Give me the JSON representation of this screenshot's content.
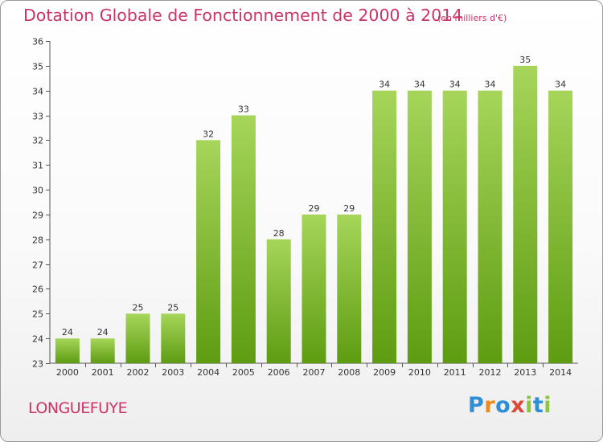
{
  "chart_data": {
    "type": "bar",
    "title": "Dotation Globale de Fonctionnement de 2000 à 2014",
    "unit_note": "(en milliers d'€)",
    "categories": [
      "2000",
      "2001",
      "2002",
      "2003",
      "2004",
      "2005",
      "2006",
      "2007",
      "2008",
      "2009",
      "2010",
      "2011",
      "2012",
      "2013",
      "2014"
    ],
    "values": [
      24,
      24,
      25,
      25,
      32,
      33,
      28,
      29,
      29,
      34,
      34,
      34,
      34,
      35,
      34
    ],
    "ylim": [
      23,
      36
    ],
    "yticks": [
      23,
      24,
      25,
      26,
      27,
      28,
      29,
      30,
      31,
      32,
      33,
      34,
      35,
      36
    ],
    "grid": false,
    "bar_color_top": "#a6d55a",
    "bar_color_bottom": "#5e9c12"
  },
  "footer": {
    "commune": "LONGUEFUYE",
    "logo": [
      {
        "char": "P",
        "color": "#2f8fd6"
      },
      {
        "char": "r",
        "color": "#f08a1d"
      },
      {
        "char": "o",
        "color": "#2f8fd6"
      },
      {
        "char": "x",
        "color": "#d94a3a"
      },
      {
        "char": "i",
        "color": "#8cc63f"
      },
      {
        "char": "t",
        "color": "#2f8fd6"
      },
      {
        "char": "i",
        "color": "#8cc63f"
      }
    ]
  }
}
